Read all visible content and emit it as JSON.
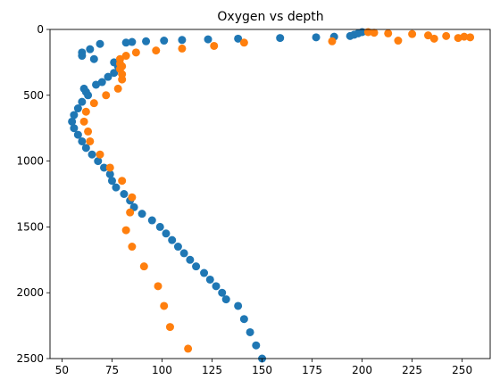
{
  "chart_data": {
    "type": "scatter",
    "title": "Oxygen vs depth",
    "xlabel": "",
    "ylabel": "",
    "xlim": [
      44,
      264
    ],
    "ylim": [
      2500,
      0
    ],
    "y_inverted": true,
    "x_ticks": [
      50,
      75,
      100,
      125,
      150,
      175,
      200,
      225,
      250
    ],
    "y_ticks": [
      0,
      500,
      1000,
      1500,
      2000,
      2500
    ],
    "grid": false,
    "legend": "none",
    "series": [
      {
        "color": "#1f77b4",
        "points": [
          {
            "x": 200,
            "y": 20
          },
          {
            "x": 198,
            "y": 30
          },
          {
            "x": 196,
            "y": 40
          },
          {
            "x": 194,
            "y": 50
          },
          {
            "x": 186,
            "y": 55
          },
          {
            "x": 177,
            "y": 60
          },
          {
            "x": 159,
            "y": 65
          },
          {
            "x": 138,
            "y": 70
          },
          {
            "x": 123,
            "y": 75
          },
          {
            "x": 110,
            "y": 80
          },
          {
            "x": 101,
            "y": 85
          },
          {
            "x": 92,
            "y": 90
          },
          {
            "x": 85,
            "y": 95
          },
          {
            "x": 82,
            "y": 100
          },
          {
            "x": 69,
            "y": 110
          },
          {
            "x": 64,
            "y": 150
          },
          {
            "x": 60,
            "y": 175
          },
          {
            "x": 60,
            "y": 200
          },
          {
            "x": 66,
            "y": 225
          },
          {
            "x": 76,
            "y": 250
          },
          {
            "x": 78,
            "y": 280
          },
          {
            "x": 76,
            "y": 330
          },
          {
            "x": 73,
            "y": 360
          },
          {
            "x": 70,
            "y": 400
          },
          {
            "x": 67,
            "y": 420
          },
          {
            "x": 61,
            "y": 450
          },
          {
            "x": 62,
            "y": 475
          },
          {
            "x": 63,
            "y": 500
          },
          {
            "x": 60,
            "y": 550
          },
          {
            "x": 58,
            "y": 600
          },
          {
            "x": 56,
            "y": 650
          },
          {
            "x": 55,
            "y": 700
          },
          {
            "x": 56,
            "y": 750
          },
          {
            "x": 58,
            "y": 800
          },
          {
            "x": 60,
            "y": 850
          },
          {
            "x": 62,
            "y": 900
          },
          {
            "x": 65,
            "y": 950
          },
          {
            "x": 68,
            "y": 1000
          },
          {
            "x": 71,
            "y": 1050
          },
          {
            "x": 74,
            "y": 1100
          },
          {
            "x": 75,
            "y": 1150
          },
          {
            "x": 77,
            "y": 1200
          },
          {
            "x": 81,
            "y": 1250
          },
          {
            "x": 84,
            "y": 1300
          },
          {
            "x": 86,
            "y": 1350
          },
          {
            "x": 90,
            "y": 1400
          },
          {
            "x": 95,
            "y": 1450
          },
          {
            "x": 99,
            "y": 1500
          },
          {
            "x": 102,
            "y": 1550
          },
          {
            "x": 105,
            "y": 1600
          },
          {
            "x": 108,
            "y": 1650
          },
          {
            "x": 111,
            "y": 1700
          },
          {
            "x": 114,
            "y": 1750
          },
          {
            "x": 117,
            "y": 1800
          },
          {
            "x": 121,
            "y": 1850
          },
          {
            "x": 124,
            "y": 1900
          },
          {
            "x": 127,
            "y": 1950
          },
          {
            "x": 130,
            "y": 2000
          },
          {
            "x": 132,
            "y": 2050
          },
          {
            "x": 138,
            "y": 2100
          },
          {
            "x": 141,
            "y": 2200
          },
          {
            "x": 144,
            "y": 2300
          },
          {
            "x": 147,
            "y": 2400
          },
          {
            "x": 150,
            "y": 2500
          }
        ]
      },
      {
        "color": "#ff7f0e",
        "points": [
          {
            "x": 203,
            "y": 20
          },
          {
            "x": 206,
            "y": 25
          },
          {
            "x": 213,
            "y": 30
          },
          {
            "x": 225,
            "y": 35
          },
          {
            "x": 233,
            "y": 45
          },
          {
            "x": 242,
            "y": 50
          },
          {
            "x": 251,
            "y": 55
          },
          {
            "x": 254,
            "y": 60
          },
          {
            "x": 248,
            "y": 65
          },
          {
            "x": 236,
            "y": 70
          },
          {
            "x": 218,
            "y": 85
          },
          {
            "x": 185,
            "y": 90
          },
          {
            "x": 141,
            "y": 100
          },
          {
            "x": 126,
            "y": 125
          },
          {
            "x": 110,
            "y": 145
          },
          {
            "x": 97,
            "y": 160
          },
          {
            "x": 87,
            "y": 175
          },
          {
            "x": 82,
            "y": 200
          },
          {
            "x": 79,
            "y": 225
          },
          {
            "x": 79,
            "y": 260
          },
          {
            "x": 80,
            "y": 280
          },
          {
            "x": 79,
            "y": 300
          },
          {
            "x": 80,
            "y": 340
          },
          {
            "x": 80,
            "y": 380
          },
          {
            "x": 78,
            "y": 450
          },
          {
            "x": 72,
            "y": 500
          },
          {
            "x": 66,
            "y": 560
          },
          {
            "x": 62,
            "y": 625
          },
          {
            "x": 61,
            "y": 700
          },
          {
            "x": 63,
            "y": 775
          },
          {
            "x": 64,
            "y": 850
          },
          {
            "x": 69,
            "y": 950
          },
          {
            "x": 74,
            "y": 1050
          },
          {
            "x": 80,
            "y": 1150
          },
          {
            "x": 85,
            "y": 1275
          },
          {
            "x": 84,
            "y": 1390
          },
          {
            "x": 82,
            "y": 1525
          },
          {
            "x": 85,
            "y": 1650
          },
          {
            "x": 91,
            "y": 1800
          },
          {
            "x": 98,
            "y": 1950
          },
          {
            "x": 101,
            "y": 2100
          },
          {
            "x": 104,
            "y": 2260
          },
          {
            "x": 113,
            "y": 2425
          }
        ]
      }
    ]
  }
}
